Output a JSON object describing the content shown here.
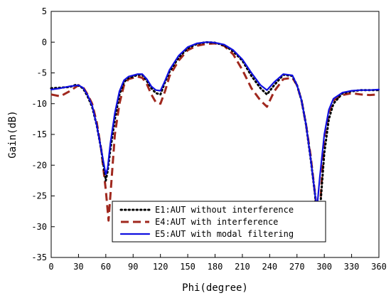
{
  "chart_data": {
    "type": "line",
    "xlabel": "Phi(degree)",
    "ylabel": "Gain(dB)",
    "xlim": [
      0,
      360
    ],
    "ylim": [
      -35,
      5
    ],
    "xticks": [
      0,
      30,
      60,
      90,
      120,
      150,
      180,
      210,
      240,
      270,
      300,
      330,
      360
    ],
    "yticks": [
      5,
      0,
      -5,
      -10,
      -15,
      -20,
      -25,
      -30,
      -35
    ],
    "grid": false,
    "legend_position": "bottom-center",
    "series": [
      {
        "name": "E1:AUT without interference",
        "color": "#000000",
        "style": "dotted",
        "x": [
          0,
          10,
          20,
          28,
          35,
          40,
          45,
          50,
          55,
          60,
          62,
          65,
          70,
          75,
          80,
          85,
          90,
          95,
          100,
          105,
          110,
          115,
          120,
          125,
          130,
          140,
          150,
          160,
          170,
          175,
          180,
          190,
          200,
          210,
          220,
          230,
          237,
          245,
          255,
          265,
          270,
          275,
          280,
          285,
          290,
          293,
          296,
          300,
          305,
          310,
          320,
          330,
          340,
          350,
          360
        ],
        "y": [
          -7.5,
          -7.4,
          -7.3,
          -6.9,
          -7.5,
          -8.8,
          -10.5,
          -13.5,
          -17.5,
          -22.5,
          -21.0,
          -17.5,
          -12.5,
          -8.5,
          -6.5,
          -5.8,
          -5.6,
          -5.3,
          -5.3,
          -6.3,
          -7.5,
          -8.3,
          -8.5,
          -6.5,
          -4.8,
          -2.5,
          -1.0,
          -0.3,
          0,
          -0.05,
          -0.1,
          -0.5,
          -1.5,
          -3.0,
          -5.5,
          -7.5,
          -8.5,
          -7.0,
          -5.3,
          -5.5,
          -7.0,
          -9.5,
          -13.5,
          -19.0,
          -25.0,
          -32.0,
          -26.0,
          -18.0,
          -12.5,
          -10.0,
          -8.3,
          -8.0,
          -7.8,
          -7.8,
          -7.8
        ]
      },
      {
        "name": "E4:AUT with interference",
        "color": "#a0281e",
        "style": "dashed",
        "x": [
          0,
          10,
          20,
          30,
          35,
          40,
          45,
          50,
          55,
          60,
          63,
          66,
          70,
          75,
          80,
          85,
          90,
          95,
          100,
          105,
          110,
          115,
          120,
          125,
          130,
          140,
          150,
          160,
          170,
          180,
          190,
          200,
          210,
          220,
          230,
          237,
          245,
          255,
          265,
          270,
          275,
          280,
          285,
          290,
          294,
          297,
          300,
          305,
          310,
          320,
          330,
          340,
          350,
          360
        ],
        "y": [
          -8.5,
          -8.8,
          -8.0,
          -7.0,
          -7.3,
          -8.5,
          -10.0,
          -13.0,
          -17.5,
          -24.0,
          -29.0,
          -23.0,
          -15.0,
          -10.0,
          -7.0,
          -6.0,
          -5.8,
          -5.6,
          -5.8,
          -6.8,
          -8.5,
          -9.8,
          -10.0,
          -8.0,
          -5.5,
          -3.0,
          -1.3,
          -0.6,
          -0.3,
          -0.2,
          -0.6,
          -2.0,
          -4.5,
          -7.5,
          -9.5,
          -10.5,
          -8.0,
          -6.0,
          -5.8,
          -7.0,
          -9.5,
          -13.5,
          -18.5,
          -25.0,
          -30.0,
          -23.0,
          -15.5,
          -11.5,
          -9.5,
          -8.6,
          -8.3,
          -8.5,
          -8.6,
          -8.5
        ]
      },
      {
        "name": "E5:AUT with modal filtering",
        "color": "#1010e0",
        "style": "solid",
        "x": [
          0,
          10,
          20,
          30,
          35,
          40,
          45,
          50,
          55,
          60,
          62,
          65,
          70,
          75,
          80,
          85,
          90,
          95,
          100,
          105,
          110,
          115,
          120,
          125,
          130,
          140,
          150,
          160,
          170,
          175,
          180,
          190,
          200,
          210,
          220,
          230,
          237,
          245,
          255,
          265,
          270,
          275,
          280,
          285,
          290,
          292,
          295,
          300,
          305,
          310,
          320,
          330,
          340,
          350,
          360
        ],
        "y": [
          -7.7,
          -7.5,
          -7.2,
          -7.0,
          -7.4,
          -8.6,
          -10.3,
          -13.5,
          -17.5,
          -21.5,
          -20.5,
          -16.5,
          -11.5,
          -8.0,
          -6.2,
          -5.6,
          -5.4,
          -5.2,
          -5.2,
          -6.0,
          -7.2,
          -7.8,
          -7.9,
          -6.3,
          -4.5,
          -2.2,
          -0.8,
          -0.2,
          0,
          0,
          -0.1,
          -0.4,
          -1.3,
          -2.8,
          -5.0,
          -7.0,
          -7.8,
          -6.5,
          -5.2,
          -5.4,
          -7.0,
          -9.5,
          -13.5,
          -19.0,
          -25.0,
          -27.0,
          -22.0,
          -15.0,
          -11.0,
          -9.2,
          -8.2,
          -7.9,
          -7.8,
          -7.8,
          -7.7
        ]
      }
    ]
  }
}
